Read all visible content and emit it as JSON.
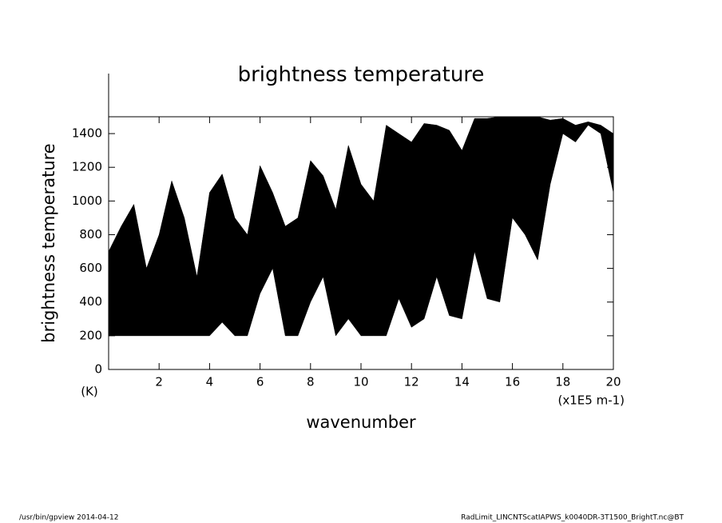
{
  "chart_data": {
    "type": "area",
    "title": "brightness temperature",
    "y_label": "brightness temperature",
    "x_label": "wavenumber",
    "y_unit": "(K)",
    "x_unit": "(x1E5 m-1)",
    "footer_left": "/usr/bin/gpview   2014-04-12",
    "footer_right": "RadLimit_LINCNTScatIAPWS_k0040DR-3T1500_BrightT.nc@BT",
    "color": "#000000",
    "x": [
      0,
      0.5,
      1,
      1.5,
      2,
      2.5,
      3,
      3.5,
      4,
      4.5,
      5,
      5.5,
      6,
      6.5,
      7,
      7.5,
      8,
      8.5,
      9,
      9.5,
      10,
      10.5,
      11,
      11.5,
      12,
      12.5,
      13,
      13.5,
      14,
      14.5,
      15,
      15.5,
      16,
      16.5,
      17,
      17.5,
      18,
      18.5,
      19,
      19.5,
      20
    ],
    "high": [
      700,
      850,
      980,
      600,
      800,
      1120,
      900,
      550,
      1050,
      1160,
      900,
      800,
      1210,
      1050,
      850,
      900,
      1240,
      1150,
      950,
      1330,
      1100,
      1000,
      1450,
      1400,
      1350,
      1460,
      1450,
      1420,
      1300,
      1490,
      1490,
      1500,
      1500,
      1500,
      1500,
      1480,
      1490,
      1450,
      1470,
      1450,
      1400
    ],
    "low": [
      200,
      200,
      200,
      200,
      200,
      200,
      200,
      200,
      200,
      280,
      200,
      200,
      450,
      600,
      200,
      200,
      400,
      550,
      200,
      300,
      200,
      200,
      200,
      420,
      250,
      300,
      550,
      320,
      300,
      700,
      420,
      400,
      900,
      800,
      650,
      1100,
      1400,
      1350,
      1450,
      1400,
      1050
    ],
    "xlim": [
      0,
      20
    ],
    "xticks": [
      2,
      4,
      6,
      8,
      10,
      12,
      14,
      16,
      18,
      20
    ],
    "ylim": [
      0,
      1500
    ],
    "yticks": [
      0,
      200,
      400,
      600,
      800,
      1000,
      1200,
      1400
    ]
  }
}
